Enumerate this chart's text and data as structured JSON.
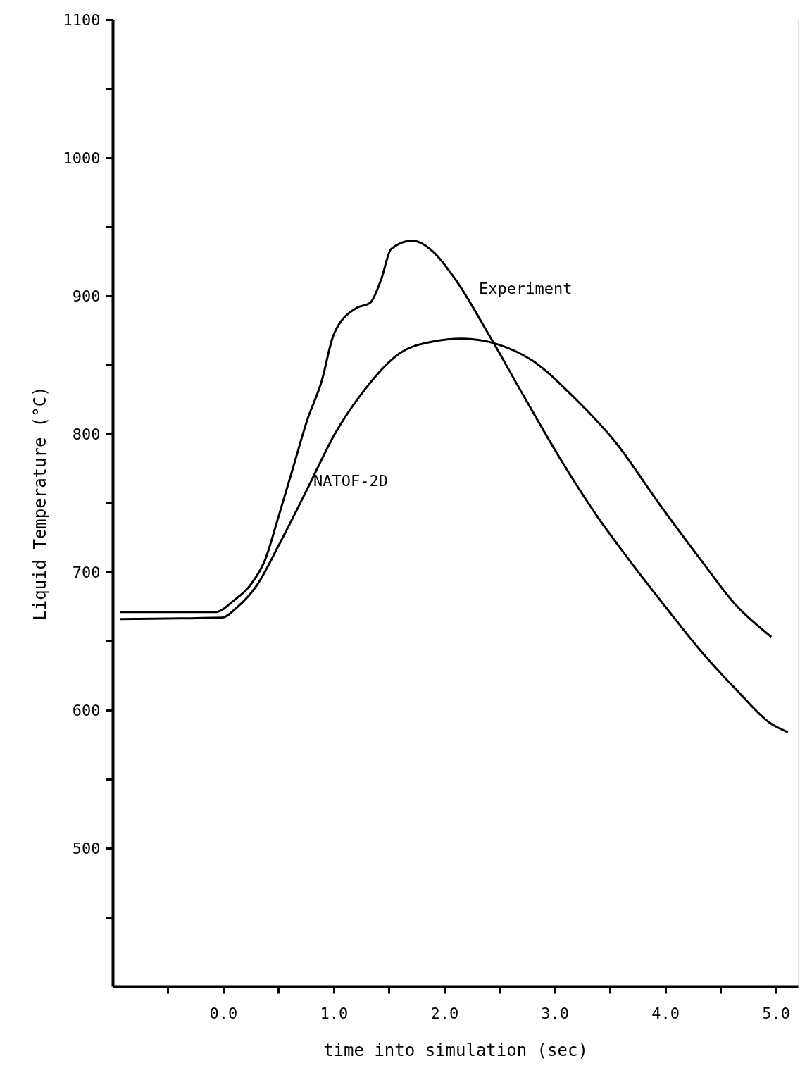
{
  "chart_data": {
    "type": "line",
    "xlabel": "time into simulation (sec)",
    "ylabel": "Liquid Temperature (°C)",
    "xlim": [
      -1.0,
      5.2
    ],
    "ylim": [
      400,
      1100
    ],
    "xticks": [
      {
        "value": -0.5,
        "label": null
      },
      {
        "value": 0,
        "label": "0.0"
      },
      {
        "value": 0.5,
        "label": null
      },
      {
        "value": 1,
        "label": "1.0"
      },
      {
        "value": 1.5,
        "label": null
      },
      {
        "value": 2,
        "label": "2.0"
      },
      {
        "value": 2.5,
        "label": null
      },
      {
        "value": 3,
        "label": "3.0"
      },
      {
        "value": 3.5,
        "label": null
      },
      {
        "value": 4,
        "label": "4.0"
      },
      {
        "value": 4.5,
        "label": null
      },
      {
        "value": 5,
        "label": "5.0"
      }
    ],
    "yticks": [
      {
        "value": 450,
        "label": null
      },
      500,
      {
        "value": 550,
        "label": null
      },
      600,
      {
        "value": 650,
        "label": null
      },
      700,
      {
        "value": 750,
        "label": null
      },
      800,
      {
        "value": 850,
        "label": null
      },
      900,
      {
        "value": 950,
        "label": null
      },
      1000,
      {
        "value": 1050,
        "label": null
      },
      1100
    ],
    "grid": false,
    "line_style": "solid",
    "marker": "none",
    "series": [
      {
        "name": "Experiment",
        "color": "#000000",
        "x": [
          -0.93,
          -0.07,
          0.09,
          0.25,
          0.38,
          0.5,
          0.63,
          0.76,
          0.89,
          1.0,
          1.2,
          1.33,
          1.43,
          1.52,
          1.71,
          1.9,
          2.1,
          2.41,
          2.73,
          3.05,
          3.37,
          3.69,
          4.01,
          4.32,
          4.64,
          4.96,
          5.11
        ],
        "values": [
          671,
          671,
          679,
          691,
          709,
          740,
          775,
          810,
          838,
          872,
          891,
          895,
          912,
          934,
          940,
          932,
          912,
          871,
          826,
          782,
          742,
          707,
          674,
          643,
          615,
          590,
          584
        ]
      },
      {
        "name": "NATOF-2D",
        "color": "#000000",
        "x": [
          -0.93,
          -0.01,
          0.12,
          0.31,
          0.5,
          0.76,
          1.01,
          1.27,
          1.59,
          1.9,
          2.16,
          2.48,
          2.8,
          3.18,
          3.56,
          3.94,
          4.32,
          4.64,
          4.96
        ],
        "values": [
          666,
          667,
          674,
          691,
          719,
          760,
          800,
          831,
          858,
          867,
          869,
          865,
          853,
          826,
          793,
          750,
          709,
          676,
          653
        ]
      }
    ]
  }
}
